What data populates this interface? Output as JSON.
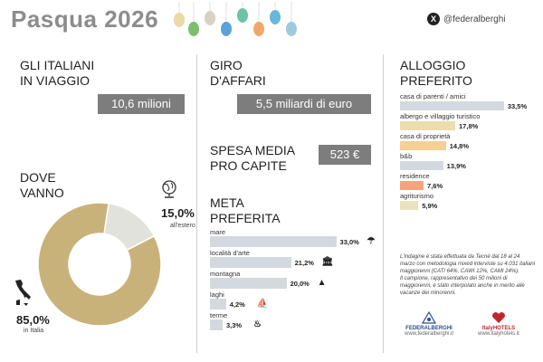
{
  "header": {
    "title": "Pasqua 2026",
    "handle": "@federalberghi"
  },
  "travellers": {
    "heading_line1": "GLI ITALIANI",
    "heading_line2": "IN VIAGGIO",
    "value": "10,6 milioni"
  },
  "turnover": {
    "heading_line1": "GIRO",
    "heading_line2": "D'AFFARI",
    "value": "5,5 miliardi di euro"
  },
  "spend": {
    "heading_line1": "SPESA MEDIA",
    "heading_line2": "PRO CAPITE",
    "value": "523 €"
  },
  "where": {
    "heading_line1": "DOVE",
    "heading_line2": "VANNO"
  },
  "destination": {
    "heading_line1": "META",
    "heading_line2": "PREFERITA"
  },
  "accommodation": {
    "heading_line1": "ALLOGGIO",
    "heading_line2": "PREFERITO"
  },
  "chart_data": [
    {
      "type": "pie",
      "categories": [
        "in Italia",
        "all'estero"
      ],
      "values": [
        85.0,
        15.0
      ],
      "value_labels": [
        "85,0%",
        "15,0%"
      ],
      "colors": [
        "#c9b27a",
        "#e2e2dc"
      ]
    },
    {
      "type": "bar",
      "categories": [
        "mare",
        "località d'arte",
        "montagna",
        "laghi",
        "terme"
      ],
      "values": [
        33.0,
        21.2,
        20.0,
        4.2,
        3.3
      ],
      "value_labels": [
        "33,0%",
        "21,2%",
        "20,0%",
        "4,2%",
        "3,3%"
      ],
      "icons": [
        "umbrella-icon",
        "temple-icon",
        "mountain-icon",
        "boat-icon",
        "spa-icon"
      ],
      "color": "#d3d9de"
    },
    {
      "type": "bar",
      "categories": [
        "casa di parenti / amici",
        "albergo e villaggio turistico",
        "casa di proprietà",
        "b&b",
        "residence",
        "agriturismo"
      ],
      "values": [
        33.5,
        17.8,
        14.8,
        13.9,
        7.6,
        5.9
      ],
      "value_labels": [
        "33,5%",
        "17,8%",
        "14,8%",
        "13,9%",
        "7,6%",
        "5,9%"
      ],
      "colors": [
        "#d3d9de",
        "#ecdcae",
        "#f6cf95",
        "#d3d9de",
        "#f2a57f",
        "#e8e3bf"
      ]
    }
  ],
  "note": {
    "p1": "L'indagine è stata effettuata da Tecnè dal 18 al 24 marzo con metodologia mixed interviste su 4.031 italiani maggiorenni (CATI 64%, CAWI 12%, CAMI 24%).",
    "p2": "Il campione, rappresentativo dei 50 milioni di maggiorenni, è stato interpolato anche in merito alle vacanze dei minorenni."
  },
  "logos": {
    "left": "FEDERALBERGHI",
    "left_sub": "www.federalberghi.it",
    "right": "ItalyHOTELS",
    "right_sub": "www.italyhotels.it"
  }
}
